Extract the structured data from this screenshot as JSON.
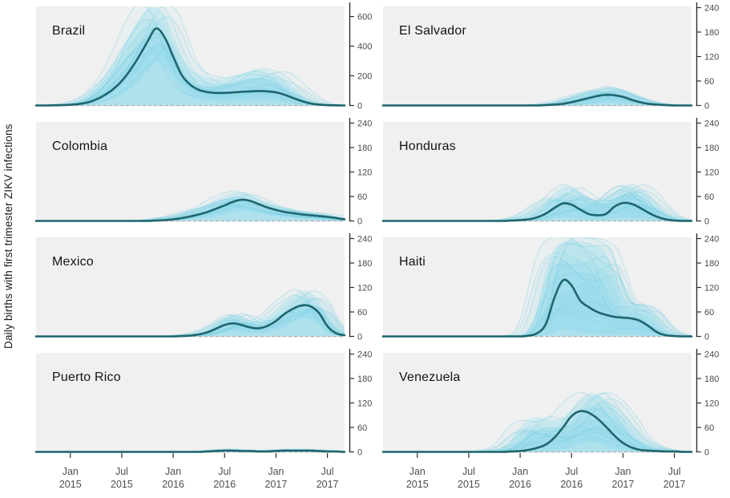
{
  "figure": {
    "ylabel": "Daily births with first trimester ZIKV infections"
  },
  "chart_data": {
    "type": "line",
    "title": "",
    "ylabel": "Daily births with first trimester ZIKV infections",
    "x_domain": [
      "2014-09",
      "2017-09"
    ],
    "months_span": 36,
    "grid": false,
    "legend": "none",
    "x_ticks": [
      {
        "t": 4,
        "line1": "Jan",
        "line2": "2015"
      },
      {
        "t": 10,
        "line1": "Jul",
        "line2": "2015"
      },
      {
        "t": 16,
        "line1": "Jan",
        "line2": "2016"
      },
      {
        "t": 22,
        "line1": "Jul",
        "line2": "2016"
      },
      {
        "t": 28,
        "line1": "Jan",
        "line2": "2017"
      },
      {
        "t": 34,
        "line1": "Jul",
        "line2": "2017"
      }
    ],
    "colors": {
      "median": "#1e656d",
      "band": "#b4e4f0",
      "ensemble": "#7dcfe2",
      "panel_bg": "#f0f0f0",
      "axis": "#2f2f2f",
      "tick_label": "#4a4a4a",
      "zero_dash": "#a9adb0",
      "title": "#141414"
    },
    "panels": [
      {
        "title": "Brazil",
        "ymax": 660,
        "yticks": [
          0,
          200,
          400,
          600
        ],
        "ylim": [
          0,
          660
        ],
        "median": [
          0,
          0,
          1,
          2,
          5,
          10,
          20,
          40,
          70,
          110,
          165,
          240,
          330,
          430,
          520,
          460,
          330,
          205,
          140,
          105,
          90,
          85,
          85,
          88,
          92,
          95,
          97,
          95,
          88,
          72,
          50,
          30,
          14,
          6,
          2,
          1,
          0
        ],
        "band_upper": [
          0,
          2,
          4,
          8,
          18,
          40,
          80,
          140,
          210,
          290,
          390,
          490,
          580,
          650,
          660,
          610,
          470,
          330,
          250,
          210,
          190,
          182,
          185,
          200,
          215,
          230,
          238,
          232,
          212,
          175,
          125,
          75,
          38,
          14,
          5,
          2,
          0
        ],
        "band_lower": [
          0,
          0,
          0,
          0,
          1,
          2,
          5,
          12,
          25,
          45,
          75,
          115,
          165,
          230,
          290,
          255,
          170,
          95,
          55,
          40,
          32,
          28,
          27,
          28,
          30,
          32,
          33,
          32,
          28,
          20,
          12,
          6,
          2,
          1,
          0,
          0,
          0
        ]
      },
      {
        "title": "El Salvador",
        "ymax": 240,
        "yticks": [
          0,
          60,
          120,
          180,
          240
        ],
        "ylim": [
          0,
          240
        ],
        "median": [
          0,
          0,
          0,
          0,
          0,
          0,
          0,
          0,
          0,
          0,
          0,
          0,
          0,
          0,
          0,
          0,
          0,
          0,
          0,
          1,
          2,
          4,
          8,
          13,
          18,
          23,
          26,
          25,
          21,
          14,
          8,
          4,
          2,
          1,
          0,
          0,
          0
        ],
        "band_upper": [
          0,
          0,
          0,
          0,
          0,
          0,
          0,
          0,
          0,
          0,
          0,
          0,
          0,
          0,
          0,
          0,
          0,
          1,
          2,
          4,
          8,
          14,
          20,
          27,
          33,
          39,
          44,
          43,
          37,
          28,
          18,
          10,
          5,
          2,
          1,
          0,
          0
        ],
        "band_lower": [
          0,
          0,
          0,
          0,
          0,
          0,
          0,
          0,
          0,
          0,
          0,
          0,
          0,
          0,
          0,
          0,
          0,
          0,
          0,
          0,
          0,
          0,
          0,
          2,
          4,
          6,
          7,
          7,
          5,
          3,
          1,
          0,
          0,
          0,
          0,
          0,
          0
        ]
      },
      {
        "title": "Colombia",
        "ymax": 240,
        "yticks": [
          0,
          60,
          120,
          180,
          240
        ],
        "ylim": [
          0,
          240
        ],
        "median": [
          0,
          0,
          0,
          0,
          0,
          0,
          0,
          0,
          0,
          0,
          0,
          0,
          0,
          0,
          1,
          2,
          4,
          7,
          11,
          16,
          22,
          30,
          38,
          47,
          52,
          49,
          41,
          33,
          27,
          22,
          19,
          16,
          14,
          12,
          10,
          7,
          4
        ],
        "band_upper": [
          0,
          0,
          0,
          0,
          0,
          0,
          0,
          0,
          0,
          0,
          0,
          0,
          1,
          2,
          4,
          7,
          11,
          17,
          24,
          32,
          42,
          53,
          62,
          69,
          72,
          66,
          56,
          46,
          39,
          33,
          29,
          25,
          22,
          19,
          16,
          12,
          7
        ],
        "band_lower": [
          0,
          0,
          0,
          0,
          0,
          0,
          0,
          0,
          0,
          0,
          0,
          0,
          0,
          0,
          0,
          0,
          1,
          2,
          3,
          5,
          8,
          12,
          17,
          22,
          25,
          23,
          19,
          15,
          12,
          9,
          8,
          6,
          5,
          4,
          3,
          2,
          1
        ]
      },
      {
        "title": "Honduras",
        "ymax": 240,
        "yticks": [
          0,
          60,
          120,
          180,
          240
        ],
        "ylim": [
          0,
          240
        ],
        "median": [
          0,
          0,
          0,
          0,
          0,
          0,
          0,
          0,
          0,
          0,
          0,
          0,
          0,
          0,
          0,
          1,
          2,
          4,
          9,
          18,
          32,
          43,
          40,
          28,
          17,
          14,
          17,
          35,
          44,
          42,
          32,
          20,
          10,
          4,
          1,
          0,
          0
        ],
        "band_upper": [
          0,
          0,
          0,
          0,
          0,
          0,
          0,
          0,
          0,
          0,
          0,
          0,
          0,
          0,
          1,
          3,
          7,
          14,
          28,
          48,
          68,
          82,
          85,
          72,
          56,
          50,
          56,
          70,
          82,
          85,
          76,
          58,
          36,
          17,
          6,
          2,
          0
        ],
        "band_lower": [
          0,
          0,
          0,
          0,
          0,
          0,
          0,
          0,
          0,
          0,
          0,
          0,
          0,
          0,
          0,
          0,
          0,
          0,
          1,
          3,
          6,
          9,
          8,
          5,
          3,
          3,
          3,
          5,
          7,
          8,
          6,
          4,
          2,
          1,
          0,
          0,
          0
        ]
      },
      {
        "title": "Mexico",
        "ymax": 240,
        "yticks": [
          0,
          60,
          120,
          180,
          240
        ],
        "ylim": [
          0,
          240
        ],
        "median": [
          0,
          0,
          0,
          0,
          0,
          0,
          0,
          0,
          0,
          0,
          0,
          0,
          0,
          0,
          0,
          0,
          0,
          1,
          2,
          5,
          10,
          19,
          28,
          32,
          28,
          22,
          20,
          26,
          38,
          55,
          68,
          76,
          74,
          58,
          25,
          8,
          3
        ],
        "band_upper": [
          0,
          0,
          0,
          0,
          0,
          0,
          0,
          0,
          0,
          0,
          0,
          0,
          0,
          0,
          0,
          0,
          1,
          3,
          6,
          12,
          22,
          36,
          48,
          55,
          48,
          40,
          38,
          48,
          65,
          85,
          100,
          112,
          108,
          88,
          45,
          18,
          6
        ],
        "band_lower": [
          0,
          0,
          0,
          0,
          0,
          0,
          0,
          0,
          0,
          0,
          0,
          0,
          0,
          0,
          0,
          0,
          0,
          0,
          0,
          0,
          2,
          6,
          10,
          12,
          10,
          8,
          8,
          11,
          18,
          28,
          38,
          44,
          42,
          30,
          10,
          3,
          1
        ]
      },
      {
        "title": "Haiti",
        "ymax": 240,
        "yticks": [
          0,
          60,
          120,
          180,
          240
        ],
        "ylim": [
          0,
          240
        ],
        "median": [
          0,
          0,
          0,
          0,
          0,
          0,
          0,
          0,
          0,
          0,
          0,
          0,
          0,
          0,
          0,
          0,
          0,
          2,
          8,
          30,
          95,
          138,
          125,
          88,
          72,
          60,
          53,
          48,
          46,
          44,
          38,
          25,
          10,
          3,
          1,
          0,
          0
        ],
        "band_upper": [
          0,
          0,
          0,
          0,
          0,
          0,
          0,
          0,
          0,
          0,
          0,
          0,
          0,
          0,
          0,
          0,
          3,
          15,
          70,
          160,
          215,
          232,
          235,
          233,
          230,
          222,
          205,
          150,
          90,
          76,
          72,
          60,
          35,
          15,
          5,
          1,
          0
        ],
        "band_lower": [
          0,
          0,
          0,
          0,
          0,
          0,
          0,
          0,
          0,
          0,
          0,
          0,
          0,
          0,
          0,
          0,
          0,
          0,
          0,
          3,
          10,
          18,
          14,
          9,
          7,
          6,
          5,
          5,
          5,
          4,
          3,
          2,
          1,
          0,
          0,
          0,
          0
        ]
      },
      {
        "title": "Puerto Rico",
        "ymax": 240,
        "yticks": [
          0,
          60,
          120,
          180,
          240
        ],
        "ylim": [
          0,
          240
        ],
        "median": [
          0,
          0,
          0,
          0,
          0,
          0,
          0,
          0,
          0,
          0,
          0,
          0,
          0,
          0,
          0,
          0,
          0,
          0,
          0,
          0,
          1,
          2,
          3,
          3,
          2,
          2,
          1,
          1,
          2,
          3,
          3,
          3,
          3,
          2,
          1,
          1,
          0
        ],
        "band_upper": [
          0,
          0,
          0,
          0,
          0,
          0,
          0,
          0,
          0,
          0,
          0,
          0,
          0,
          0,
          0,
          0,
          0,
          0,
          0,
          1,
          2,
          4,
          6,
          6,
          5,
          4,
          3,
          3,
          4,
          5,
          6,
          6,
          6,
          5,
          3,
          2,
          1
        ],
        "band_lower": [
          0,
          0,
          0,
          0,
          0,
          0,
          0,
          0,
          0,
          0,
          0,
          0,
          0,
          0,
          0,
          0,
          0,
          0,
          0,
          0,
          0,
          0,
          0,
          0,
          0,
          0,
          0,
          0,
          0,
          0,
          0,
          0,
          0,
          0,
          0,
          0,
          0
        ]
      },
      {
        "title": "Venezuela",
        "ymax": 240,
        "yticks": [
          0,
          60,
          120,
          180,
          240
        ],
        "ylim": [
          0,
          240
        ],
        "median": [
          0,
          0,
          0,
          0,
          0,
          0,
          0,
          0,
          0,
          0,
          0,
          0,
          0,
          0,
          0,
          1,
          2,
          5,
          10,
          18,
          35,
          60,
          88,
          100,
          96,
          82,
          62,
          40,
          22,
          11,
          5,
          3,
          2,
          1,
          1,
          0,
          0
        ],
        "band_upper": [
          0,
          0,
          0,
          0,
          0,
          0,
          0,
          0,
          0,
          0,
          0,
          0,
          2,
          5,
          12,
          30,
          60,
          80,
          85,
          80,
          78,
          85,
          105,
          125,
          138,
          140,
          128,
          108,
          82,
          55,
          33,
          18,
          9,
          4,
          2,
          1,
          0
        ],
        "band_lower": [
          0,
          0,
          0,
          0,
          0,
          0,
          0,
          0,
          0,
          0,
          0,
          0,
          0,
          0,
          0,
          0,
          0,
          0,
          0,
          0,
          3,
          6,
          12,
          20,
          25,
          22,
          15,
          8,
          4,
          2,
          1,
          0,
          0,
          0,
          0,
          0,
          0
        ]
      }
    ]
  }
}
